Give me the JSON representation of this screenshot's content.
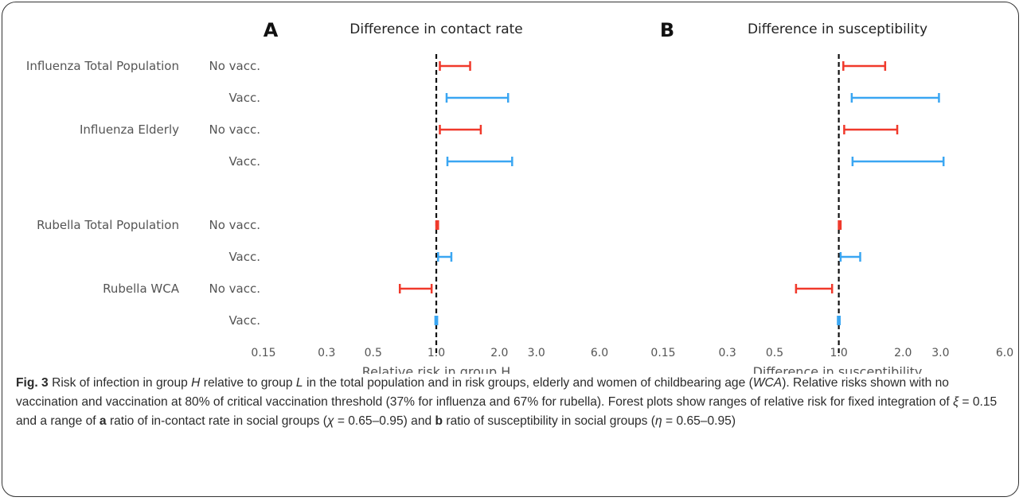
{
  "colors": {
    "no_vacc": "#f0392b",
    "vacc": "#3aa6f2",
    "ref_line": "#111111",
    "text": "#555555"
  },
  "row_labels": {
    "groups": [
      "Influenza Total Population",
      "Influenza Elderly",
      "Rubella Total Population",
      "Rubella WCA"
    ],
    "conditions": [
      "No vacc.",
      "Vacc.",
      "No vacc.",
      "Vacc.",
      "No vacc.",
      "Vacc.",
      "No vacc.",
      "Vacc."
    ]
  },
  "chart_data": [
    {
      "type": "forest",
      "panel_letter": "A",
      "title": "Difference in contact rate",
      "xlabel": "Relative risk in group H",
      "xscale": "log",
      "xlim": [
        0.15,
        6.0
      ],
      "xticks": [
        "0.15",
        "0.3",
        "0.5",
        "1.0",
        "2.0",
        "3.0",
        "6.0"
      ],
      "reference_line": 1.0,
      "rows": [
        {
          "group": "Influenza Total Population",
          "condition": "No vacc.",
          "low": 1.04,
          "high": 1.45
        },
        {
          "group": "Influenza Total Population",
          "condition": "Vacc.",
          "low": 1.12,
          "high": 2.2
        },
        {
          "group": "Influenza Elderly",
          "condition": "No vacc.",
          "low": 1.04,
          "high": 1.63
        },
        {
          "group": "Influenza Elderly",
          "condition": "Vacc.",
          "low": 1.13,
          "high": 2.3
        },
        {
          "group": "Rubella Total Population",
          "condition": "No vacc.",
          "low": 1.0,
          "high": 1.02
        },
        {
          "group": "Rubella Total Population",
          "condition": "Vacc.",
          "low": 1.02,
          "high": 1.18
        },
        {
          "group": "Rubella WCA",
          "condition": "No vacc.",
          "low": 0.67,
          "high": 0.95
        },
        {
          "group": "Rubella WCA",
          "condition": "Vacc.",
          "low": 0.99,
          "high": 1.01
        }
      ]
    },
    {
      "type": "forest",
      "panel_letter": "B",
      "title": "Difference in susceptibility",
      "xlabel": "Difference in susceptibility",
      "xscale": "log",
      "xlim": [
        0.15,
        6.0
      ],
      "xticks": [
        "0.15",
        "0.3",
        "0.5",
        "1.0",
        "2.0",
        "3.0",
        "6.0"
      ],
      "reference_line": 1.0,
      "rows": [
        {
          "group": "Influenza Total Population",
          "condition": "No vacc.",
          "low": 1.05,
          "high": 1.65
        },
        {
          "group": "Influenza Total Population",
          "condition": "Vacc.",
          "low": 1.15,
          "high": 2.95
        },
        {
          "group": "Influenza Elderly",
          "condition": "No vacc.",
          "low": 1.06,
          "high": 1.88
        },
        {
          "group": "Influenza Elderly",
          "condition": "Vacc.",
          "low": 1.16,
          "high": 3.1
        },
        {
          "group": "Rubella Total Population",
          "condition": "No vacc.",
          "low": 1.0,
          "high": 1.02
        },
        {
          "group": "Rubella Total Population",
          "condition": "Vacc.",
          "low": 1.02,
          "high": 1.26
        },
        {
          "group": "Rubella WCA",
          "condition": "No vacc.",
          "low": 0.63,
          "high": 0.93
        },
        {
          "group": "Rubella WCA",
          "condition": "Vacc.",
          "low": 0.99,
          "high": 1.01
        }
      ]
    }
  ],
  "caption": {
    "fig_label": "Fig. 3",
    "p1": " Risk of infection in group ",
    "H": "H",
    "p2": " relative to group ",
    "L": "L",
    "p3": " in the total population and in risk groups, elderly and women of childbearing age (",
    "WCA": "WCA",
    "p4": "). Relative risks shown with no vaccination and vaccination at 80% of critical vaccination threshold (37% for influenza and 67% for rubella). Forest plots show ranges of relative risk for fixed integration of ",
    "xi": "ξ",
    "p5": " = 0.15 and a range of ",
    "a": "a",
    "p6": " ratio of in-contact rate in social groups (",
    "chi": "χ",
    "p7": " = 0.65–0.95) and ",
    "b": "b",
    "p8": " ratio of susceptibility in social groups (",
    "eta": "η",
    "p9": " = 0.65–0.95)"
  }
}
